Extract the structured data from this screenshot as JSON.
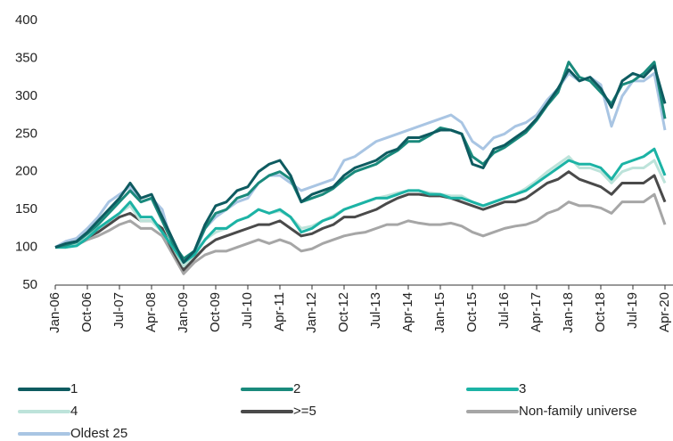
{
  "chart_data": {
    "type": "line",
    "categories": [
      "Jan-06",
      null,
      null,
      "Oct-06",
      null,
      null,
      "Jul-07",
      null,
      null,
      "Apr-08",
      null,
      null,
      "Jan-09",
      null,
      null,
      "Oct-09",
      null,
      null,
      "Jul-10",
      null,
      null,
      "Apr-11",
      null,
      null,
      "Jan-12",
      null,
      null,
      "Oct-12",
      null,
      null,
      "Jul-13",
      null,
      null,
      "Apr-14",
      null,
      null,
      "Jan-15",
      null,
      null,
      "Oct-15",
      null,
      null,
      "Jul-16",
      null,
      null,
      "Apr-17",
      null,
      null,
      "Jan-18",
      null,
      null,
      "Oct-18",
      null,
      null,
      "Jul-19",
      null,
      null,
      "Apr-20"
    ],
    "ylim": [
      50,
      400
    ],
    "yticks": [
      50,
      100,
      150,
      200,
      250,
      300,
      350,
      400
    ],
    "grid": false,
    "series": [
      {
        "name": "1",
        "color": "#0e5b60",
        "values": [
          100,
          105,
          108,
          120,
          135,
          150,
          165,
          185,
          165,
          170,
          140,
          110,
          80,
          95,
          130,
          155,
          160,
          175,
          180,
          200,
          210,
          215,
          195,
          160,
          170,
          175,
          180,
          195,
          205,
          210,
          215,
          225,
          230,
          245,
          245,
          250,
          255,
          255,
          250,
          210,
          205,
          230,
          235,
          245,
          255,
          270,
          290,
          310,
          335,
          320,
          325,
          310,
          285,
          320,
          330,
          325,
          340,
          290
        ]
      },
      {
        "name": "2",
        "color": "#1a8a7c",
        "values": [
          100,
          103,
          107,
          118,
          130,
          145,
          160,
          175,
          160,
          165,
          135,
          105,
          85,
          95,
          125,
          145,
          150,
          165,
          170,
          185,
          195,
          200,
          190,
          160,
          165,
          170,
          178,
          190,
          200,
          205,
          210,
          220,
          228,
          240,
          240,
          248,
          258,
          255,
          250,
          220,
          210,
          225,
          232,
          242,
          252,
          268,
          288,
          305,
          345,
          325,
          320,
          305,
          290,
          315,
          320,
          330,
          345,
          270
        ]
      },
      {
        "name": "3",
        "color": "#1cb3a5",
        "values": [
          100,
          100,
          102,
          112,
          125,
          135,
          145,
          160,
          140,
          140,
          120,
          100,
          80,
          90,
          110,
          125,
          125,
          135,
          140,
          150,
          145,
          150,
          140,
          120,
          125,
          135,
          140,
          150,
          155,
          160,
          165,
          165,
          170,
          175,
          175,
          170,
          170,
          165,
          165,
          160,
          155,
          160,
          165,
          170,
          175,
          185,
          195,
          205,
          215,
          210,
          210,
          205,
          190,
          210,
          215,
          220,
          230,
          195
        ]
      },
      {
        "name": "4",
        "color": "#bde3da",
        "values": [
          100,
          102,
          105,
          115,
          125,
          135,
          145,
          155,
          135,
          135,
          120,
          100,
          75,
          90,
          110,
          120,
          125,
          135,
          140,
          150,
          145,
          148,
          140,
          125,
          128,
          135,
          142,
          150,
          155,
          160,
          165,
          168,
          172,
          175,
          175,
          172,
          170,
          168,
          168,
          160,
          155,
          160,
          165,
          170,
          178,
          188,
          200,
          210,
          220,
          205,
          205,
          200,
          185,
          200,
          205,
          205,
          215,
          185
        ]
      },
      {
        "name": ">=5",
        "color": "#4a4a4a",
        "values": [
          100,
          102,
          105,
          113,
          120,
          130,
          140,
          145,
          135,
          135,
          125,
          95,
          70,
          85,
          100,
          110,
          115,
          120,
          125,
          130,
          130,
          135,
          125,
          115,
          118,
          125,
          130,
          140,
          140,
          145,
          150,
          158,
          165,
          170,
          170,
          168,
          168,
          165,
          160,
          155,
          150,
          155,
          160,
          160,
          165,
          175,
          185,
          190,
          200,
          190,
          185,
          180,
          170,
          185,
          185,
          185,
          195,
          160
        ]
      },
      {
        "name": "Non-family universe",
        "color": "#a6a6a6",
        "values": [
          100,
          100,
          103,
          110,
          115,
          122,
          130,
          135,
          125,
          125,
          115,
          90,
          65,
          80,
          90,
          95,
          95,
          100,
          105,
          110,
          105,
          110,
          105,
          95,
          98,
          105,
          110,
          115,
          118,
          120,
          125,
          130,
          130,
          135,
          132,
          130,
          130,
          132,
          128,
          120,
          115,
          120,
          125,
          128,
          130,
          135,
          145,
          150,
          160,
          155,
          155,
          152,
          145,
          160,
          160,
          160,
          170,
          130
        ]
      },
      {
        "name": "Oldest 25",
        "color": "#a9c5e3",
        "values": [
          100,
          108,
          112,
          125,
          140,
          160,
          170,
          180,
          160,
          165,
          150,
          100,
          80,
          90,
          125,
          140,
          150,
          160,
          165,
          185,
          195,
          195,
          185,
          175,
          180,
          185,
          190,
          215,
          220,
          230,
          240,
          245,
          250,
          255,
          260,
          265,
          270,
          275,
          265,
          240,
          230,
          245,
          250,
          260,
          265,
          275,
          295,
          310,
          330,
          320,
          325,
          315,
          260,
          300,
          320,
          320,
          330,
          255
        ]
      }
    ]
  }
}
